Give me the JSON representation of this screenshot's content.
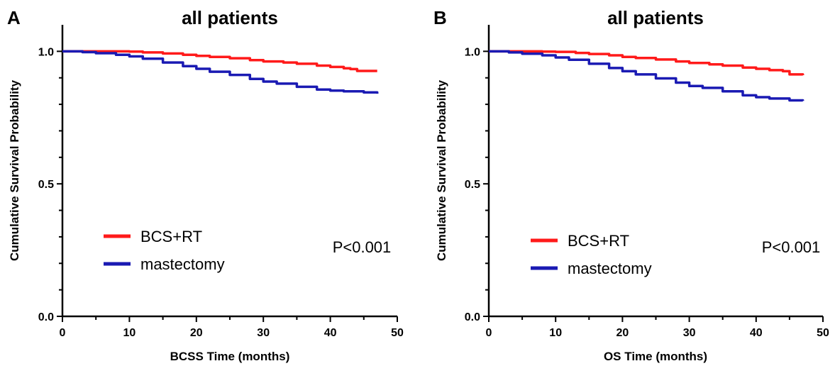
{
  "chart_data": [
    {
      "panel_letter": "A",
      "type": "line",
      "title": "all patients",
      "xlabel": "BCSS Time (months)",
      "ylabel": "Cumulative Survival Probability",
      "xlim": [
        0,
        50
      ],
      "ylim": [
        0,
        1.1
      ],
      "xticks": [
        "0",
        "10",
        "20",
        "30",
        "40",
        "50"
      ],
      "yticks": [
        "0.0",
        "0.5",
        "1.0"
      ],
      "legend_placement": "center-left",
      "annotation": "P<0.001",
      "series": [
        {
          "name": "BCS+RT",
          "color": "#ff1a1a",
          "x": [
            0,
            5,
            10,
            12,
            15,
            18,
            20,
            22,
            25,
            28,
            30,
            33,
            35,
            38,
            40,
            42,
            43,
            44,
            47
          ],
          "y": [
            1.0,
            1.0,
            0.999,
            0.996,
            0.992,
            0.987,
            0.983,
            0.979,
            0.974,
            0.967,
            0.962,
            0.958,
            0.953,
            0.946,
            0.941,
            0.936,
            0.933,
            0.926,
            0.926
          ]
        },
        {
          "name": "mastectomy",
          "color": "#1a1ab3",
          "x": [
            0,
            3,
            5,
            8,
            10,
            12,
            15,
            18,
            20,
            22,
            25,
            28,
            30,
            32,
            35,
            38,
            40,
            42,
            45,
            47
          ],
          "y": [
            1.0,
            0.997,
            0.993,
            0.987,
            0.981,
            0.972,
            0.958,
            0.944,
            0.934,
            0.923,
            0.911,
            0.896,
            0.886,
            0.878,
            0.866,
            0.856,
            0.852,
            0.849,
            0.845,
            0.84
          ]
        }
      ]
    },
    {
      "panel_letter": "B",
      "type": "line",
      "title": "all patients",
      "xlabel": "OS Time (months)",
      "ylabel": "Cumulative Survival Probability",
      "xlim": [
        0,
        50
      ],
      "ylim": [
        0,
        1.1
      ],
      "xticks": [
        "0",
        "10",
        "20",
        "30",
        "40",
        "50"
      ],
      "yticks": [
        "0.0",
        "0.5",
        "1.0"
      ],
      "legend_placement": "center-left",
      "annotation": "P<0.001",
      "series": [
        {
          "name": "BCS+RT",
          "color": "#ff1a1a",
          "x": [
            0,
            5,
            8,
            10,
            13,
            15,
            18,
            20,
            22,
            25,
            28,
            30,
            33,
            35,
            38,
            40,
            42,
            44,
            45,
            47
          ],
          "y": [
            1.0,
            1.0,
            0.999,
            0.998,
            0.994,
            0.99,
            0.985,
            0.979,
            0.975,
            0.969,
            0.962,
            0.956,
            0.951,
            0.946,
            0.939,
            0.934,
            0.929,
            0.925,
            0.913,
            0.91
          ]
        },
        {
          "name": "mastectomy",
          "color": "#1a1ab3",
          "x": [
            0,
            3,
            5,
            8,
            10,
            12,
            15,
            18,
            20,
            22,
            25,
            28,
            30,
            32,
            35,
            38,
            40,
            42,
            45,
            47
          ],
          "y": [
            1.0,
            0.996,
            0.991,
            0.985,
            0.977,
            0.968,
            0.953,
            0.937,
            0.925,
            0.913,
            0.898,
            0.882,
            0.869,
            0.862,
            0.849,
            0.834,
            0.827,
            0.822,
            0.815,
            0.813
          ]
        }
      ]
    }
  ]
}
